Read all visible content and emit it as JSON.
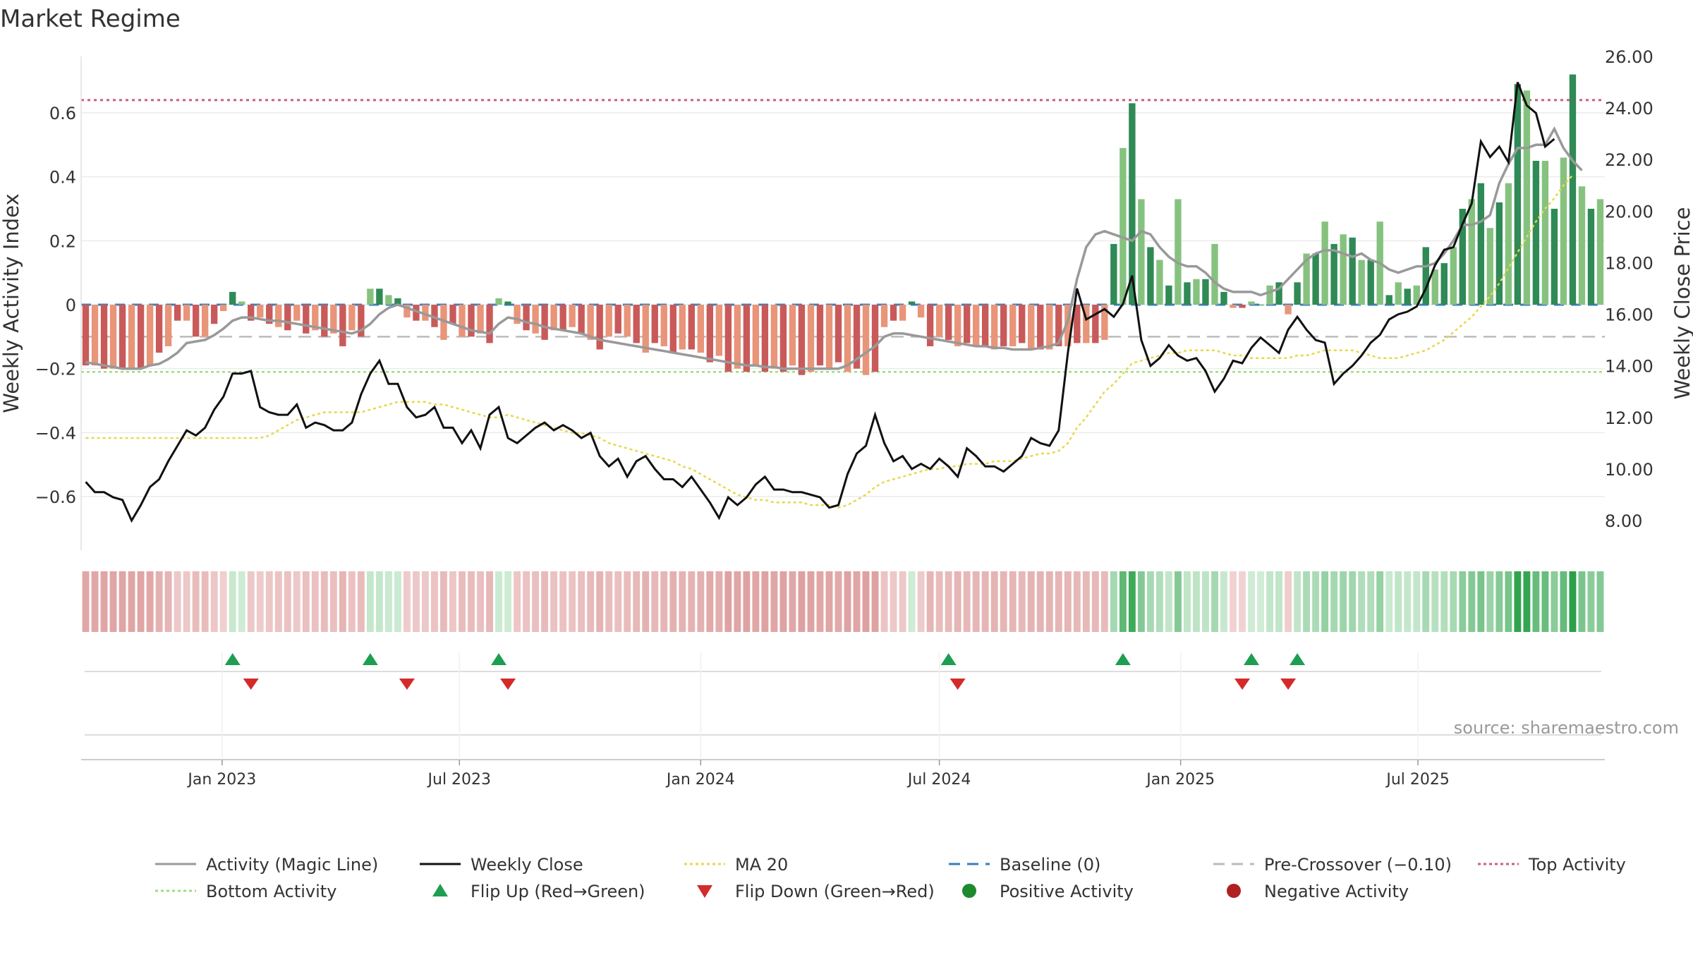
{
  "title": "Market Regime",
  "source": "source: sharemaestro.com",
  "colors": {
    "activity_line": "#999999",
    "weekly_close": "#111111",
    "ma20": "#e8d84a",
    "baseline": "#3a7ebf",
    "pre_crossover": "#bbbbbb",
    "top_activity": "#c8607a",
    "bottom_activity": "#9be07a",
    "flip_up": "#1e9e50",
    "flip_down": "#d42a2a",
    "pos_strong": "#2f8a55",
    "pos_light": "#86c27f",
    "neg_strong": "#c95a5a",
    "neg_light": "#e89579"
  },
  "chart_data": {
    "type": "bar",
    "title": "Market Regime",
    "ylabel_left": "Weekly Activity Index",
    "ylabel_right": "Weekly Close Price",
    "ylim_left": [
      -0.78,
      0.78
    ],
    "ylim_right": [
      6.0,
      26.0
    ],
    "yticks_left": [
      "−0.6",
      "−0.4",
      "−0.2",
      "0",
      "0.2",
      "0.4",
      "0.6"
    ],
    "yticks_right": [
      "8.00",
      "10.00",
      "12.00",
      "14.00",
      "16.00",
      "18.00",
      "20.00",
      "22.00",
      "24.00",
      "26.00"
    ],
    "x_range": [
      "2022-09-19",
      "2025-09-22"
    ],
    "x_ticks": [
      {
        "date": "2023-01-01",
        "label": "Jan 2023"
      },
      {
        "date": "2023-07-01",
        "label": "Jul 2023"
      },
      {
        "date": "2024-01-01",
        "label": "Jan 2024"
      },
      {
        "date": "2024-07-01",
        "label": "Jul 2024"
      },
      {
        "date": "2025-01-01",
        "label": "Jan 2025"
      },
      {
        "date": "2025-07-01",
        "label": "Jul 2025"
      }
    ],
    "start_week": "2022-09-19",
    "reference_lines": {
      "baseline": 0,
      "pre_crossover": -0.1,
      "top_activity": 0.64,
      "bottom_activity": -0.21
    },
    "activity_bars": [
      -0.19,
      -0.19,
      -0.2,
      -0.2,
      -0.2,
      -0.2,
      -0.2,
      -0.19,
      -0.15,
      -0.13,
      -0.05,
      -0.05,
      -0.1,
      -0.1,
      -0.06,
      -0.02,
      0.04,
      0.01,
      -0.05,
      -0.04,
      -0.06,
      -0.07,
      -0.08,
      -0.05,
      -0.09,
      -0.08,
      -0.1,
      -0.09,
      -0.13,
      -0.08,
      -0.1,
      0.05,
      0.05,
      0.03,
      0.02,
      -0.04,
      -0.05,
      -0.05,
      -0.07,
      -0.11,
      -0.06,
      -0.1,
      -0.1,
      -0.09,
      -0.12,
      0.02,
      0.01,
      -0.06,
      -0.08,
      -0.09,
      -0.11,
      -0.08,
      -0.08,
      -0.07,
      -0.09,
      -0.11,
      -0.14,
      -0.1,
      -0.09,
      -0.1,
      -0.12,
      -0.15,
      -0.12,
      -0.13,
      -0.15,
      -0.14,
      -0.14,
      -0.15,
      -0.18,
      -0.16,
      -0.21,
      -0.2,
      -0.21,
      -0.19,
      -0.21,
      -0.2,
      -0.21,
      -0.19,
      -0.22,
      -0.21,
      -0.19,
      -0.2,
      -0.18,
      -0.21,
      -0.2,
      -0.22,
      -0.21,
      -0.07,
      -0.05,
      -0.05,
      0.01,
      -0.04,
      -0.13,
      -0.1,
      -0.11,
      -0.13,
      -0.12,
      -0.13,
      -0.13,
      -0.14,
      -0.13,
      -0.13,
      -0.12,
      -0.14,
      -0.14,
      -0.14,
      -0.13,
      -0.13,
      -0.12,
      -0.12,
      -0.12,
      -0.11,
      0.19,
      0.49,
      0.63,
      0.33,
      0.18,
      0.14,
      0.06,
      0.33,
      0.07,
      0.08,
      0.08,
      0.19,
      0.04,
      -0.01,
      -0.01,
      0.01,
      0.0,
      0.06,
      0.07,
      -0.03,
      0.07,
      0.16,
      0.16,
      0.26,
      0.19,
      0.22,
      0.21,
      0.14,
      0.14,
      0.26,
      0.03,
      0.07,
      0.05,
      0.06,
      0.18,
      0.11,
      0.13,
      0.18,
      0.3,
      0.33,
      0.38,
      0.24,
      0.32,
      0.38,
      0.69,
      0.67,
      0.45,
      0.45,
      0.3,
      0.46,
      0.72,
      0.37,
      0.3,
      0.33
    ],
    "weekly_close": [
      9.5,
      9.1,
      9.1,
      8.9,
      8.8,
      8.0,
      8.6,
      9.3,
      9.6,
      10.3,
      10.9,
      11.5,
      11.3,
      11.6,
      12.3,
      12.8,
      13.7,
      13.7,
      13.8,
      12.4,
      12.2,
      12.1,
      12.1,
      12.5,
      11.6,
      11.8,
      11.7,
      11.5,
      11.5,
      11.8,
      12.9,
      13.7,
      14.2,
      13.3,
      13.3,
      12.4,
      12.0,
      12.1,
      12.4,
      11.6,
      11.6,
      11.0,
      11.5,
      10.8,
      12.1,
      12.4,
      11.2,
      11.0,
      11.3,
      11.6,
      11.8,
      11.5,
      11.7,
      11.5,
      11.2,
      11.4,
      10.5,
      10.1,
      10.4,
      9.7,
      10.3,
      10.5,
      10.0,
      9.6,
      9.6,
      9.3,
      9.7,
      9.2,
      8.7,
      8.1,
      8.9,
      8.6,
      8.9,
      9.4,
      9.7,
      9.2,
      9.2,
      9.1,
      9.1,
      9.0,
      8.9,
      8.5,
      8.6,
      9.8,
      10.6,
      10.9,
      12.1,
      11.0,
      10.3,
      10.5,
      10.0,
      10.2,
      10.0,
      10.4,
      10.1,
      9.7,
      10.8,
      10.5,
      10.1,
      10.1,
      9.9,
      10.2,
      10.5,
      11.2,
      11.0,
      10.9,
      11.5,
      14.5,
      17.0,
      15.8,
      16.0,
      16.2,
      15.9,
      16.4,
      17.5,
      15.0,
      14.0,
      14.3,
      14.8,
      14.4,
      14.2,
      14.3,
      13.8,
      13.0,
      13.5,
      14.2,
      14.1,
      14.7,
      15.1,
      14.8,
      14.5,
      15.4,
      15.9,
      15.4,
      15.0,
      14.9,
      13.3,
      13.7,
      14.0,
      14.4,
      14.9,
      15.2,
      15.8,
      16.0,
      16.1,
      16.3,
      17.0,
      17.9,
      18.5,
      18.6,
      19.5,
      20.3,
      22.7,
      22.1,
      22.5,
      21.9,
      25.0,
      24.1,
      23.8,
      22.5,
      22.8
    ],
    "series": [
      {
        "name": "Activity (Magic Line)",
        "values": [
          -0.18,
          -0.185,
          -0.19,
          -0.195,
          -0.2,
          -0.2,
          -0.2,
          -0.19,
          -0.185,
          -0.17,
          -0.15,
          -0.12,
          -0.115,
          -0.11,
          -0.095,
          -0.075,
          -0.05,
          -0.04,
          -0.04,
          -0.045,
          -0.05,
          -0.05,
          -0.055,
          -0.06,
          -0.065,
          -0.07,
          -0.075,
          -0.08,
          -0.085,
          -0.09,
          -0.08,
          -0.06,
          -0.03,
          -0.01,
          0.0,
          -0.01,
          -0.02,
          -0.03,
          -0.04,
          -0.05,
          -0.06,
          -0.07,
          -0.08,
          -0.085,
          -0.09,
          -0.06,
          -0.04,
          -0.045,
          -0.055,
          -0.06,
          -0.07,
          -0.075,
          -0.08,
          -0.085,
          -0.09,
          -0.1,
          -0.11,
          -0.115,
          -0.12,
          -0.125,
          -0.13,
          -0.135,
          -0.14,
          -0.145,
          -0.15,
          -0.155,
          -0.16,
          -0.165,
          -0.17,
          -0.175,
          -0.18,
          -0.185,
          -0.19,
          -0.19,
          -0.195,
          -0.195,
          -0.2,
          -0.2,
          -0.2,
          -0.2,
          -0.2,
          -0.2,
          -0.2,
          -0.19,
          -0.17,
          -0.15,
          -0.13,
          -0.1,
          -0.09,
          -0.09,
          -0.095,
          -0.1,
          -0.105,
          -0.11,
          -0.115,
          -0.12,
          -0.125,
          -0.13,
          -0.13,
          -0.135,
          -0.135,
          -0.14,
          -0.14,
          -0.14,
          -0.135,
          -0.13,
          -0.12,
          -0.05,
          0.08,
          0.18,
          0.22,
          0.23,
          0.22,
          0.21,
          0.2,
          0.23,
          0.22,
          0.18,
          0.15,
          0.13,
          0.12,
          0.12,
          0.1,
          0.07,
          0.05,
          0.04,
          0.04,
          0.04,
          0.03,
          0.04,
          0.05,
          0.08,
          0.11,
          0.14,
          0.16,
          0.17,
          0.17,
          0.16,
          0.15,
          0.16,
          0.14,
          0.13,
          0.11,
          0.1,
          0.11,
          0.12,
          0.12,
          0.13,
          0.16,
          0.2,
          0.25,
          0.25,
          0.26,
          0.28,
          0.38,
          0.44,
          0.49,
          0.49,
          0.5,
          0.5,
          0.55,
          0.49,
          0.45,
          0.42
        ]
      },
      {
        "name": "Weekly Close",
        "values_ref": "weekly_close"
      },
      {
        "name": "MA 20",
        "values": [
          11.2,
          11.2,
          11.2,
          11.2,
          11.2,
          11.2,
          11.2,
          11.2,
          11.2,
          11.2,
          11.2,
          11.2,
          11.2,
          11.2,
          11.2,
          11.2,
          11.2,
          11.2,
          11.2,
          11.2,
          11.3,
          11.5,
          11.7,
          11.9,
          12.0,
          12.1,
          12.2,
          12.2,
          12.2,
          12.2,
          12.2,
          12.3,
          12.4,
          12.5,
          12.6,
          12.6,
          12.6,
          12.6,
          12.5,
          12.5,
          12.4,
          12.3,
          12.2,
          12.1,
          12.0,
          12.0,
          12.1,
          12.0,
          11.9,
          11.8,
          11.7,
          11.6,
          11.5,
          11.4,
          11.4,
          11.3,
          11.2,
          11.0,
          10.9,
          10.8,
          10.7,
          10.6,
          10.5,
          10.4,
          10.3,
          10.1,
          10.0,
          9.8,
          9.6,
          9.4,
          9.2,
          9.0,
          8.9,
          8.8,
          8.8,
          8.7,
          8.7,
          8.7,
          8.7,
          8.6,
          8.6,
          8.6,
          8.5,
          8.6,
          8.8,
          9.0,
          9.3,
          9.5,
          9.6,
          9.7,
          9.8,
          9.9,
          10.0,
          10.0,
          10.1,
          10.1,
          10.2,
          10.2,
          10.2,
          10.3,
          10.3,
          10.3,
          10.4,
          10.5,
          10.6,
          10.6,
          10.7,
          11.0,
          11.6,
          12.0,
          12.5,
          13.0,
          13.3,
          13.7,
          14.1,
          14.2,
          14.3,
          14.4,
          14.5,
          14.5,
          14.6,
          14.6,
          14.6,
          14.6,
          14.5,
          14.4,
          14.4,
          14.3,
          14.3,
          14.3,
          14.3,
          14.3,
          14.4,
          14.4,
          14.5,
          14.6,
          14.6,
          14.6,
          14.6,
          14.5,
          14.4,
          14.3,
          14.3,
          14.3,
          14.4,
          14.5,
          14.6,
          14.8,
          15.0,
          15.3,
          15.6,
          15.9,
          16.3,
          16.7,
          17.2,
          17.8,
          18.4,
          19.0,
          19.6,
          20.1,
          20.5,
          21.0,
          21.4
        ]
      },
      {
        "name": "Baseline (0)"
      },
      {
        "name": "Pre-Crossover (−0.10)"
      },
      {
        "name": "Top Activity"
      },
      {
        "name": "Bottom Activity"
      },
      {
        "name": "Flip Up (Red→Green)",
        "indices": [
          16,
          31,
          45,
          94,
          113,
          127,
          132
        ]
      },
      {
        "name": "Flip Down (Green→Red)",
        "indices": [
          18,
          35,
          46,
          95,
          126,
          131
        ]
      },
      {
        "name": "Positive Activity"
      },
      {
        "name": "Negative Activity"
      }
    ],
    "legend": {
      "placement": "bottom",
      "items": [
        {
          "label": "Activity (Magic Line)",
          "kind": "line",
          "color": "#999999"
        },
        {
          "label": "Weekly Close",
          "kind": "line",
          "color": "#111111"
        },
        {
          "label": "MA 20",
          "kind": "dotted",
          "color": "#e8d84a"
        },
        {
          "label": "Baseline (0)",
          "kind": "dashed",
          "color": "#3a7ebf"
        },
        {
          "label": "Pre-Crossover (−0.10)",
          "kind": "dashed",
          "color": "#bbbbbb"
        },
        {
          "label": "Top Activity",
          "kind": "dotted",
          "color": "#c8607a"
        },
        {
          "label": "Bottom Activity",
          "kind": "dotted",
          "color": "#9be07a"
        },
        {
          "label": "Flip Up (Red→Green)",
          "kind": "triangle-up",
          "color": "#1e9e50"
        },
        {
          "label": "Flip Down (Green→Red)",
          "kind": "triangle-down",
          "color": "#d42a2a"
        },
        {
          "label": "Positive Activity",
          "kind": "circle",
          "color": "#1e8a2e"
        },
        {
          "label": "Negative Activity",
          "kind": "circle",
          "color": "#b02020"
        }
      ]
    }
  }
}
